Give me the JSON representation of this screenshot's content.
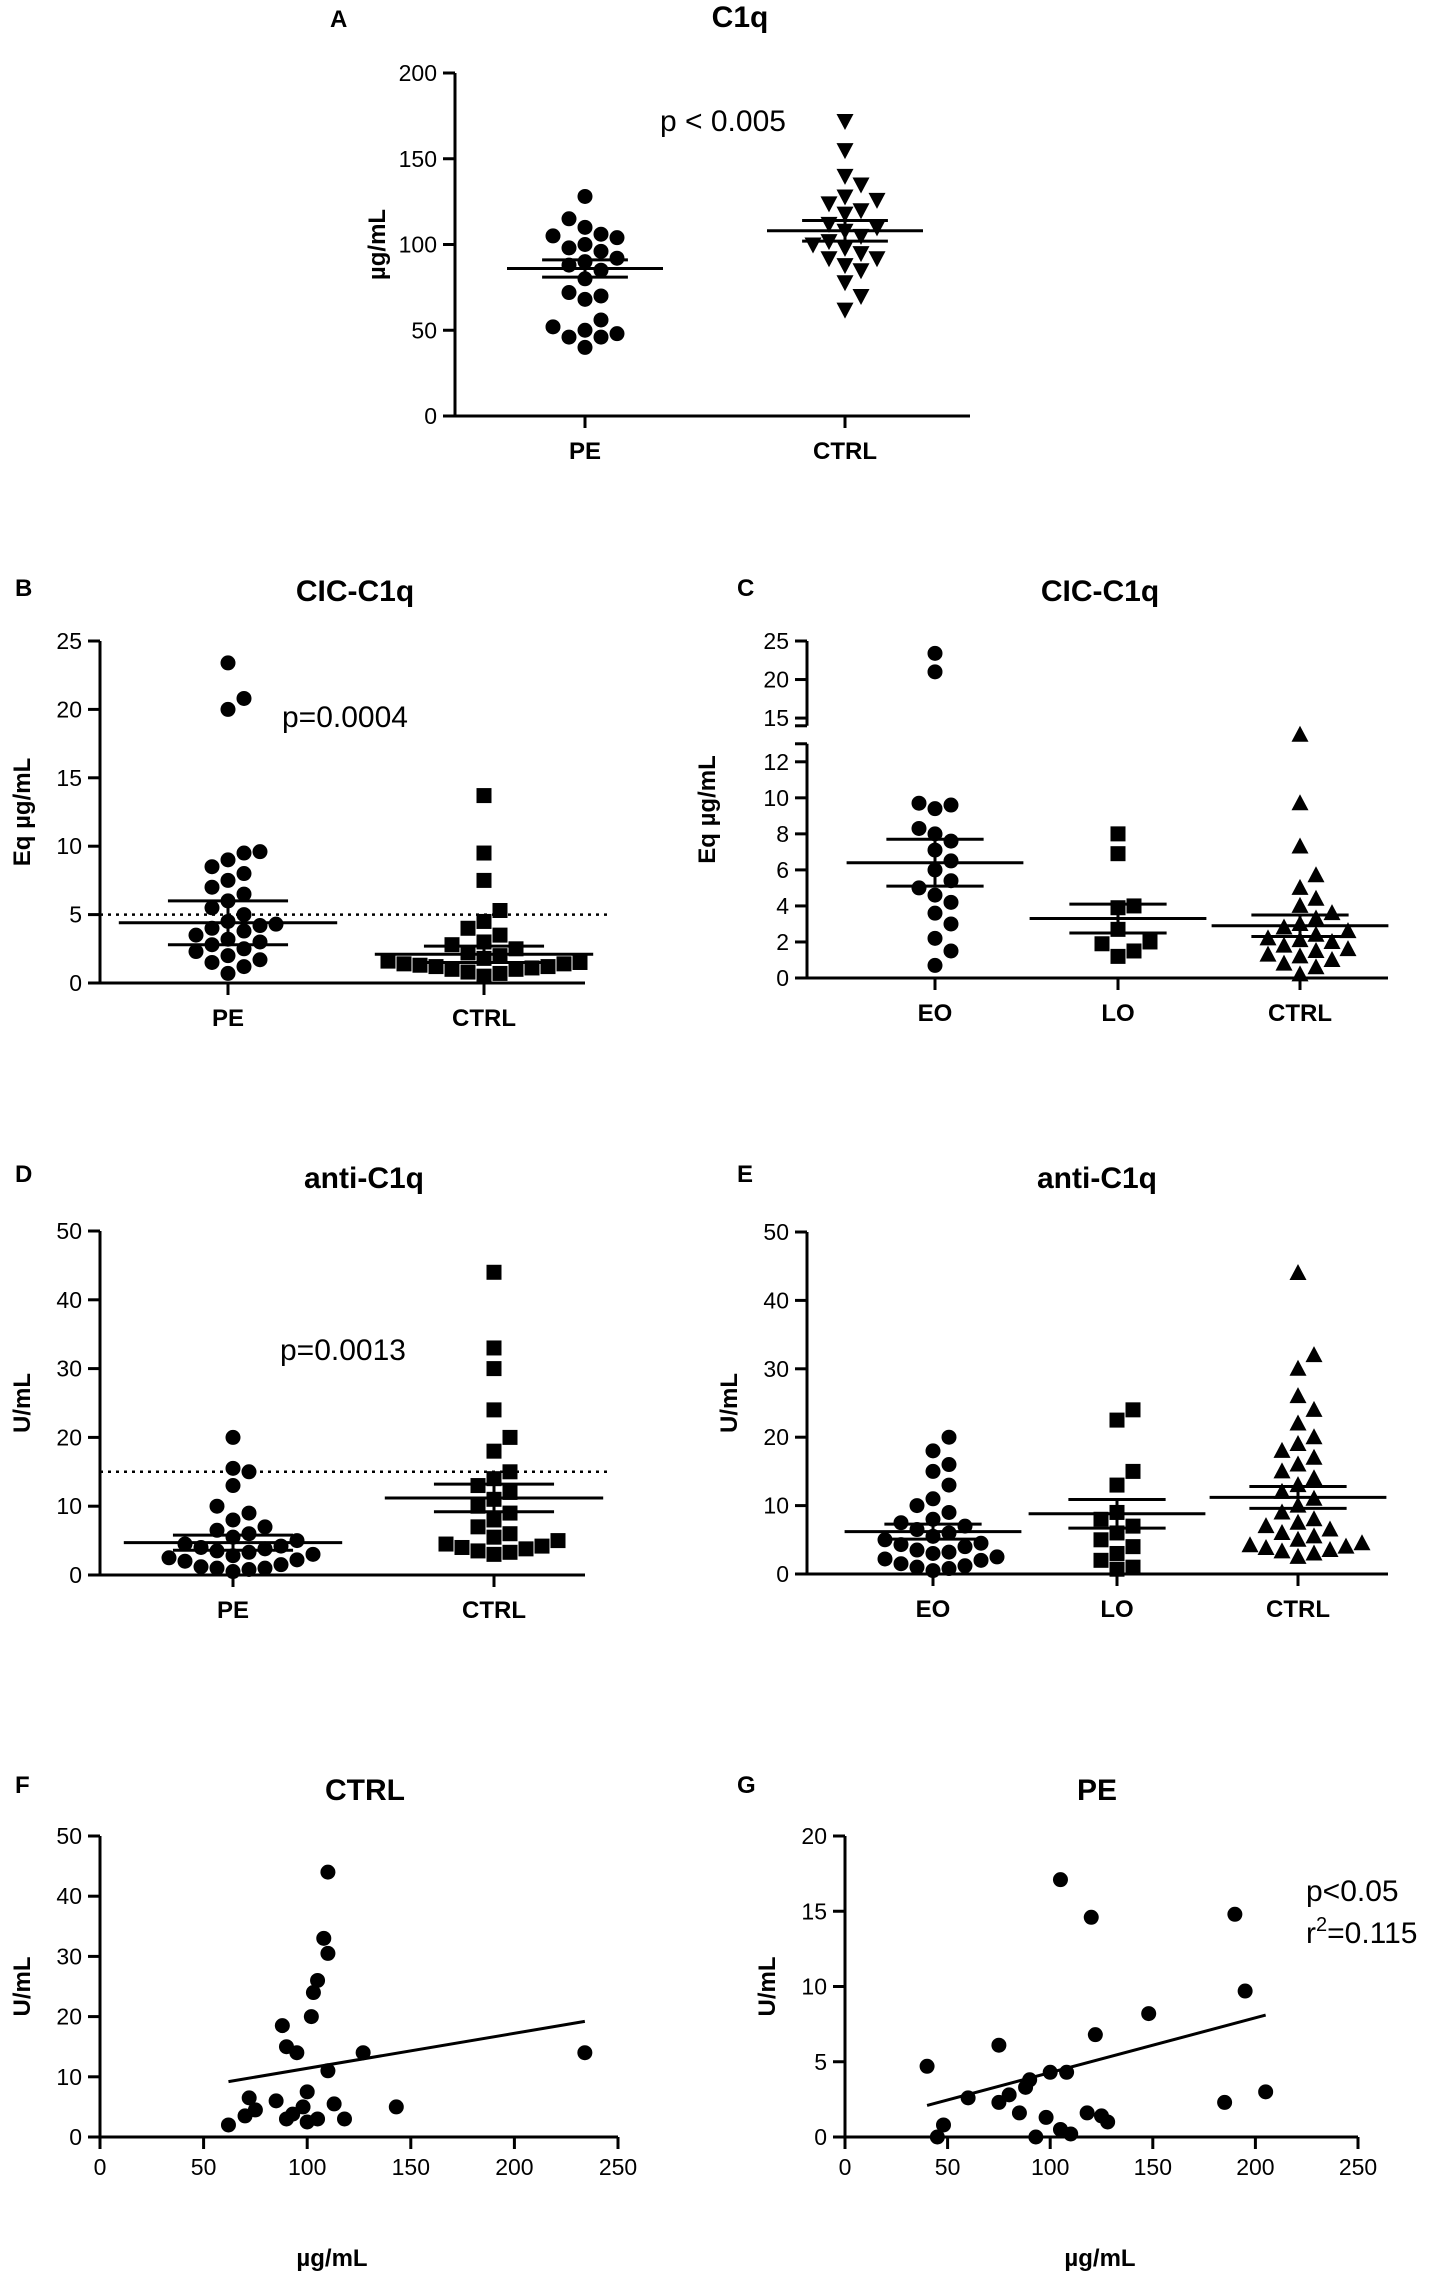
{
  "chart_data": [
    {
      "id": "A",
      "panel_label": "A",
      "type": "scatter",
      "title": "C1q",
      "ylabel": "µg/mL",
      "ylim": [
        0,
        200
      ],
      "yticks": [
        0,
        50,
        100,
        150,
        200
      ],
      "categories": [
        "PE",
        "CTRL"
      ],
      "groups": [
        {
          "name": "PE",
          "marker": "circle",
          "mean": 86,
          "sem": 5,
          "values": [
            40,
            46,
            46,
            48,
            50,
            52,
            56,
            68,
            70,
            72,
            80,
            85,
            88,
            90,
            92,
            96,
            98,
            100,
            104,
            105,
            106,
            110,
            115,
            128
          ]
        },
        {
          "name": "CTRL",
          "marker": "triangle-down",
          "mean": 108,
          "sem": 6,
          "values": [
            62,
            70,
            78,
            85,
            88,
            92,
            92,
            95,
            98,
            100,
            102,
            105,
            108,
            110,
            112,
            118,
            120,
            124,
            126,
            128,
            135,
            140,
            155,
            172
          ]
        }
      ],
      "annotations": [
        "p < 0.005"
      ]
    },
    {
      "id": "B",
      "panel_label": "B",
      "type": "scatter",
      "title": "CIC-C1q",
      "ylabel": "Eq µg/mL",
      "ylim": [
        0,
        25
      ],
      "yticks": [
        0,
        5,
        10,
        15,
        20,
        25
      ],
      "categories": [
        "PE",
        "CTRL"
      ],
      "reference_line": 5,
      "groups": [
        {
          "name": "PE",
          "marker": "circle",
          "mean": 4.4,
          "sem": 1.6,
          "values": [
            0.7,
            1.2,
            1.5,
            1.7,
            2,
            2.3,
            2.5,
            2.8,
            3,
            3.2,
            3.5,
            3.8,
            4,
            4.2,
            4.3,
            4.5,
            5,
            5.5,
            6,
            6.5,
            7,
            7.5,
            8,
            8.5,
            9,
            9.5,
            9.6,
            20,
            20.8,
            23.4
          ]
        },
        {
          "name": "CTRL",
          "marker": "square",
          "mean": 2.1,
          "sem": 0.6,
          "values": [
            0.5,
            0.7,
            0.8,
            1,
            1,
            1.1,
            1.2,
            1.2,
            1.3,
            1.4,
            1.4,
            1.5,
            1.6,
            1.8,
            2,
            2.2,
            2.5,
            2.8,
            3,
            3.5,
            4,
            4.5,
            5.3,
            7.5,
            9.5,
            13.7
          ]
        }
      ],
      "annotations": [
        "p=0.0004"
      ]
    },
    {
      "id": "C",
      "panel_label": "C",
      "type": "scatter",
      "title": "CIC-C1q",
      "ylabel": "Eq µg/mL",
      "ylim": [
        0,
        25
      ],
      "yticks": [
        0,
        2,
        4,
        6,
        8,
        10,
        12,
        15,
        20,
        25
      ],
      "axis_break": [
        13,
        14
      ],
      "categories": [
        "EO",
        "LO",
        "CTRL"
      ],
      "groups": [
        {
          "name": "EO",
          "marker": "circle",
          "mean": 6.4,
          "sem": 1.3,
          "values": [
            0.7,
            1.5,
            2.2,
            3,
            3.6,
            4.2,
            4.6,
            5,
            5.4,
            6,
            6.5,
            7.1,
            7.6,
            8,
            8.3,
            9.4,
            9.6,
            9.7,
            21,
            23.4
          ]
        },
        {
          "name": "LO",
          "marker": "square",
          "mean": 3.3,
          "sem": 0.8,
          "values": [
            1.2,
            1.5,
            1.9,
            2,
            2.7,
            3.9,
            4,
            6.9,
            8
          ]
        },
        {
          "name": "CTRL",
          "marker": "triangle-up",
          "mean": 2.9,
          "sem": 0.6,
          "values": [
            0.2,
            0.6,
            0.8,
            1,
            1.2,
            1.3,
            1.5,
            1.6,
            1.8,
            2,
            2.1,
            2.2,
            2.4,
            2.6,
            2.8,
            3,
            3.3,
            3.6,
            4,
            4.4,
            5,
            5.7,
            7.3,
            9.7,
            13.5
          ]
        }
      ],
      "annotations": []
    },
    {
      "id": "D",
      "panel_label": "D",
      "type": "scatter",
      "title": "anti-C1q",
      "ylabel": "U/mL",
      "ylim": [
        0,
        50
      ],
      "yticks": [
        0,
        10,
        20,
        30,
        40,
        50
      ],
      "categories": [
        "PE",
        "CTRL"
      ],
      "reference_line": 15,
      "groups": [
        {
          "name": "PE",
          "marker": "circle",
          "mean": 4.7,
          "sem": 1.1,
          "values": [
            0.5,
            0.8,
            1,
            1,
            1.2,
            1.5,
            2,
            2.2,
            2.5,
            2.8,
            3,
            3.3,
            3.5,
            3.8,
            4,
            4.2,
            4.5,
            5,
            5.5,
            6,
            6.5,
            7,
            8,
            9,
            10,
            13,
            15,
            15.5,
            20
          ]
        },
        {
          "name": "CTRL",
          "marker": "square",
          "mean": 11.2,
          "sem": 2,
          "values": [
            3,
            3.3,
            3.5,
            3.8,
            4,
            4.2,
            4.5,
            5,
            5.5,
            6,
            7,
            8,
            9,
            10,
            11,
            12,
            13,
            14,
            15,
            18,
            20,
            24,
            30,
            33,
            44
          ]
        }
      ],
      "annotations": [
        "p=0.0013"
      ]
    },
    {
      "id": "E",
      "panel_label": "E",
      "type": "scatter",
      "title": "anti-C1q",
      "ylabel": "U/mL",
      "ylim": [
        0,
        50
      ],
      "yticks": [
        0,
        10,
        20,
        30,
        40,
        50
      ],
      "categories": [
        "EO",
        "LO",
        "CTRL"
      ],
      "groups": [
        {
          "name": "EO",
          "marker": "circle",
          "mean": 6.2,
          "sem": 1.1,
          "values": [
            0.5,
            0.8,
            1,
            1.2,
            1.5,
            2,
            2.2,
            2.5,
            3,
            3.2,
            3.5,
            4,
            4.3,
            4.5,
            5,
            5.5,
            6,
            6.5,
            7,
            7.5,
            8,
            9,
            10,
            11,
            13,
            15,
            16,
            18,
            20
          ]
        },
        {
          "name": "LO",
          "marker": "square",
          "mean": 8.8,
          "sem": 2.1,
          "values": [
            0.7,
            1,
            2,
            3,
            4,
            5,
            6,
            7,
            8,
            9,
            13,
            15,
            22.5,
            24
          ]
        },
        {
          "name": "CTRL",
          "marker": "triangle-up",
          "mean": 11.2,
          "sem": 1.6,
          "values": [
            2.5,
            3,
            3.3,
            3.5,
            3.8,
            4,
            4.2,
            4.5,
            5,
            5.5,
            6,
            6.5,
            7,
            7.5,
            8,
            9,
            10,
            11,
            12,
            13,
            14,
            15,
            16,
            17,
            18,
            19,
            20,
            22,
            24,
            26,
            30,
            32,
            44
          ]
        }
      ],
      "annotations": []
    },
    {
      "id": "F",
      "panel_label": "F",
      "type": "scatter",
      "title": "CTRL",
      "xlabel": "µg/mL",
      "ylabel": "U/mL",
      "xlim": [
        0,
        250
      ],
      "xticks": [
        0,
        50,
        100,
        150,
        200,
        250
      ],
      "ylim": [
        0,
        50
      ],
      "yticks": [
        0,
        10,
        20,
        30,
        40,
        50
      ],
      "points": [
        [
          62,
          2
        ],
        [
          70,
          3.5
        ],
        [
          72,
          6.5
        ],
        [
          75,
          4.5
        ],
        [
          85,
          6
        ],
        [
          88,
          18.5
        ],
        [
          90,
          15
        ],
        [
          90,
          3
        ],
        [
          93,
          3.8
        ],
        [
          95,
          14
        ],
        [
          98,
          5
        ],
        [
          100,
          2.5
        ],
        [
          100,
          7.5
        ],
        [
          102,
          20
        ],
        [
          103,
          24
        ],
        [
          105,
          26
        ],
        [
          105,
          3
        ],
        [
          108,
          33
        ],
        [
          110,
          44
        ],
        [
          110,
          30.5
        ],
        [
          110,
          11
        ],
        [
          113,
          5.5
        ],
        [
          118,
          3
        ],
        [
          127,
          14
        ],
        [
          143,
          5
        ],
        [
          234,
          14
        ]
      ],
      "fit_line": [
        [
          62,
          9.2
        ],
        [
          234,
          19.2
        ]
      ],
      "annotations": []
    },
    {
      "id": "G",
      "panel_label": "G",
      "type": "scatter",
      "title": "PE",
      "xlabel": "µg/mL",
      "ylabel": "U/mL",
      "xlim": [
        0,
        250
      ],
      "xticks": [
        0,
        50,
        100,
        150,
        200,
        250
      ],
      "ylim": [
        0,
        20
      ],
      "yticks": [
        0,
        5,
        10,
        15,
        20
      ],
      "points": [
        [
          40,
          4.7
        ],
        [
          45,
          0
        ],
        [
          48,
          0.8
        ],
        [
          60,
          2.6
        ],
        [
          75,
          6.1
        ],
        [
          75,
          2.3
        ],
        [
          80,
          2.8
        ],
        [
          85,
          1.6
        ],
        [
          88,
          3.3
        ],
        [
          90,
          3.8
        ],
        [
          93,
          0
        ],
        [
          98,
          1.3
        ],
        [
          100,
          4.3
        ],
        [
          105,
          17.1
        ],
        [
          105,
          0.5
        ],
        [
          108,
          4.3
        ],
        [
          110,
          0.2
        ],
        [
          118,
          1.6
        ],
        [
          120,
          14.6
        ],
        [
          122,
          6.8
        ],
        [
          125,
          1.4
        ],
        [
          128,
          1
        ],
        [
          148,
          8.2
        ],
        [
          185,
          2.3
        ],
        [
          190,
          14.8
        ],
        [
          195,
          9.7
        ],
        [
          205,
          3
        ]
      ],
      "fit_line": [
        [
          40,
          2.1
        ],
        [
          205,
          8.1
        ]
      ],
      "annotations": [
        "p<0.05",
        "r²=0.115"
      ]
    }
  ]
}
